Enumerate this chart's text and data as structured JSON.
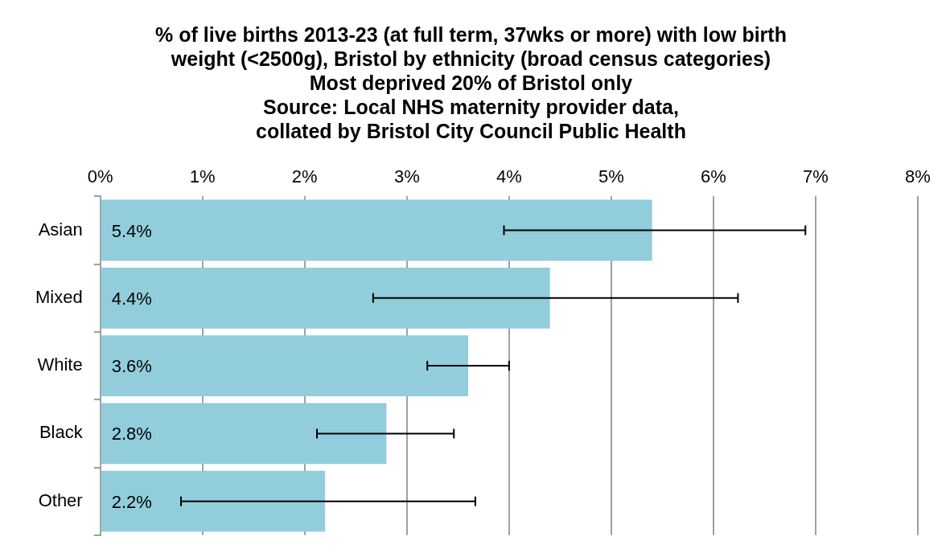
{
  "chart_data": {
    "type": "bar",
    "orientation": "horizontal",
    "title": "% of live births 2013-23 (at full term, 37wks or more) with low birth\nweight (<2500g), Bristol by ethnicity (broad census categories)\nMost deprived 20% of Bristol only\nSource: Local NHS maternity provider data,\ncollated by Bristol City Council Public Health",
    "categories": [
      "Asian",
      "Mixed",
      "White",
      "Black",
      "Other"
    ],
    "values": [
      5.4,
      4.4,
      3.6,
      2.8,
      2.2
    ],
    "value_labels": [
      "5.4%",
      "4.4%",
      "3.6%",
      "2.8%",
      "2.2%"
    ],
    "errors": [
      [
        3.95,
        6.9
      ],
      [
        2.67,
        6.24
      ],
      [
        3.2,
        4.0
      ],
      [
        2.12,
        3.46
      ],
      [
        0.79,
        3.67
      ]
    ],
    "color": "#92cddc",
    "xlim": [
      0,
      8
    ],
    "xticks": [
      {
        "value": 0,
        "label": "0%"
      },
      {
        "value": 1,
        "label": "1%"
      },
      {
        "value": 2,
        "label": "2%"
      },
      {
        "value": 3,
        "label": "3%"
      },
      {
        "value": 4,
        "label": "4%"
      },
      {
        "value": 5,
        "label": "5%"
      },
      {
        "value": 6,
        "label": "6%"
      },
      {
        "value": 7,
        "label": "7%"
      },
      {
        "value": 8,
        "label": "8%"
      }
    ],
    "grid": "x",
    "legend": false
  }
}
